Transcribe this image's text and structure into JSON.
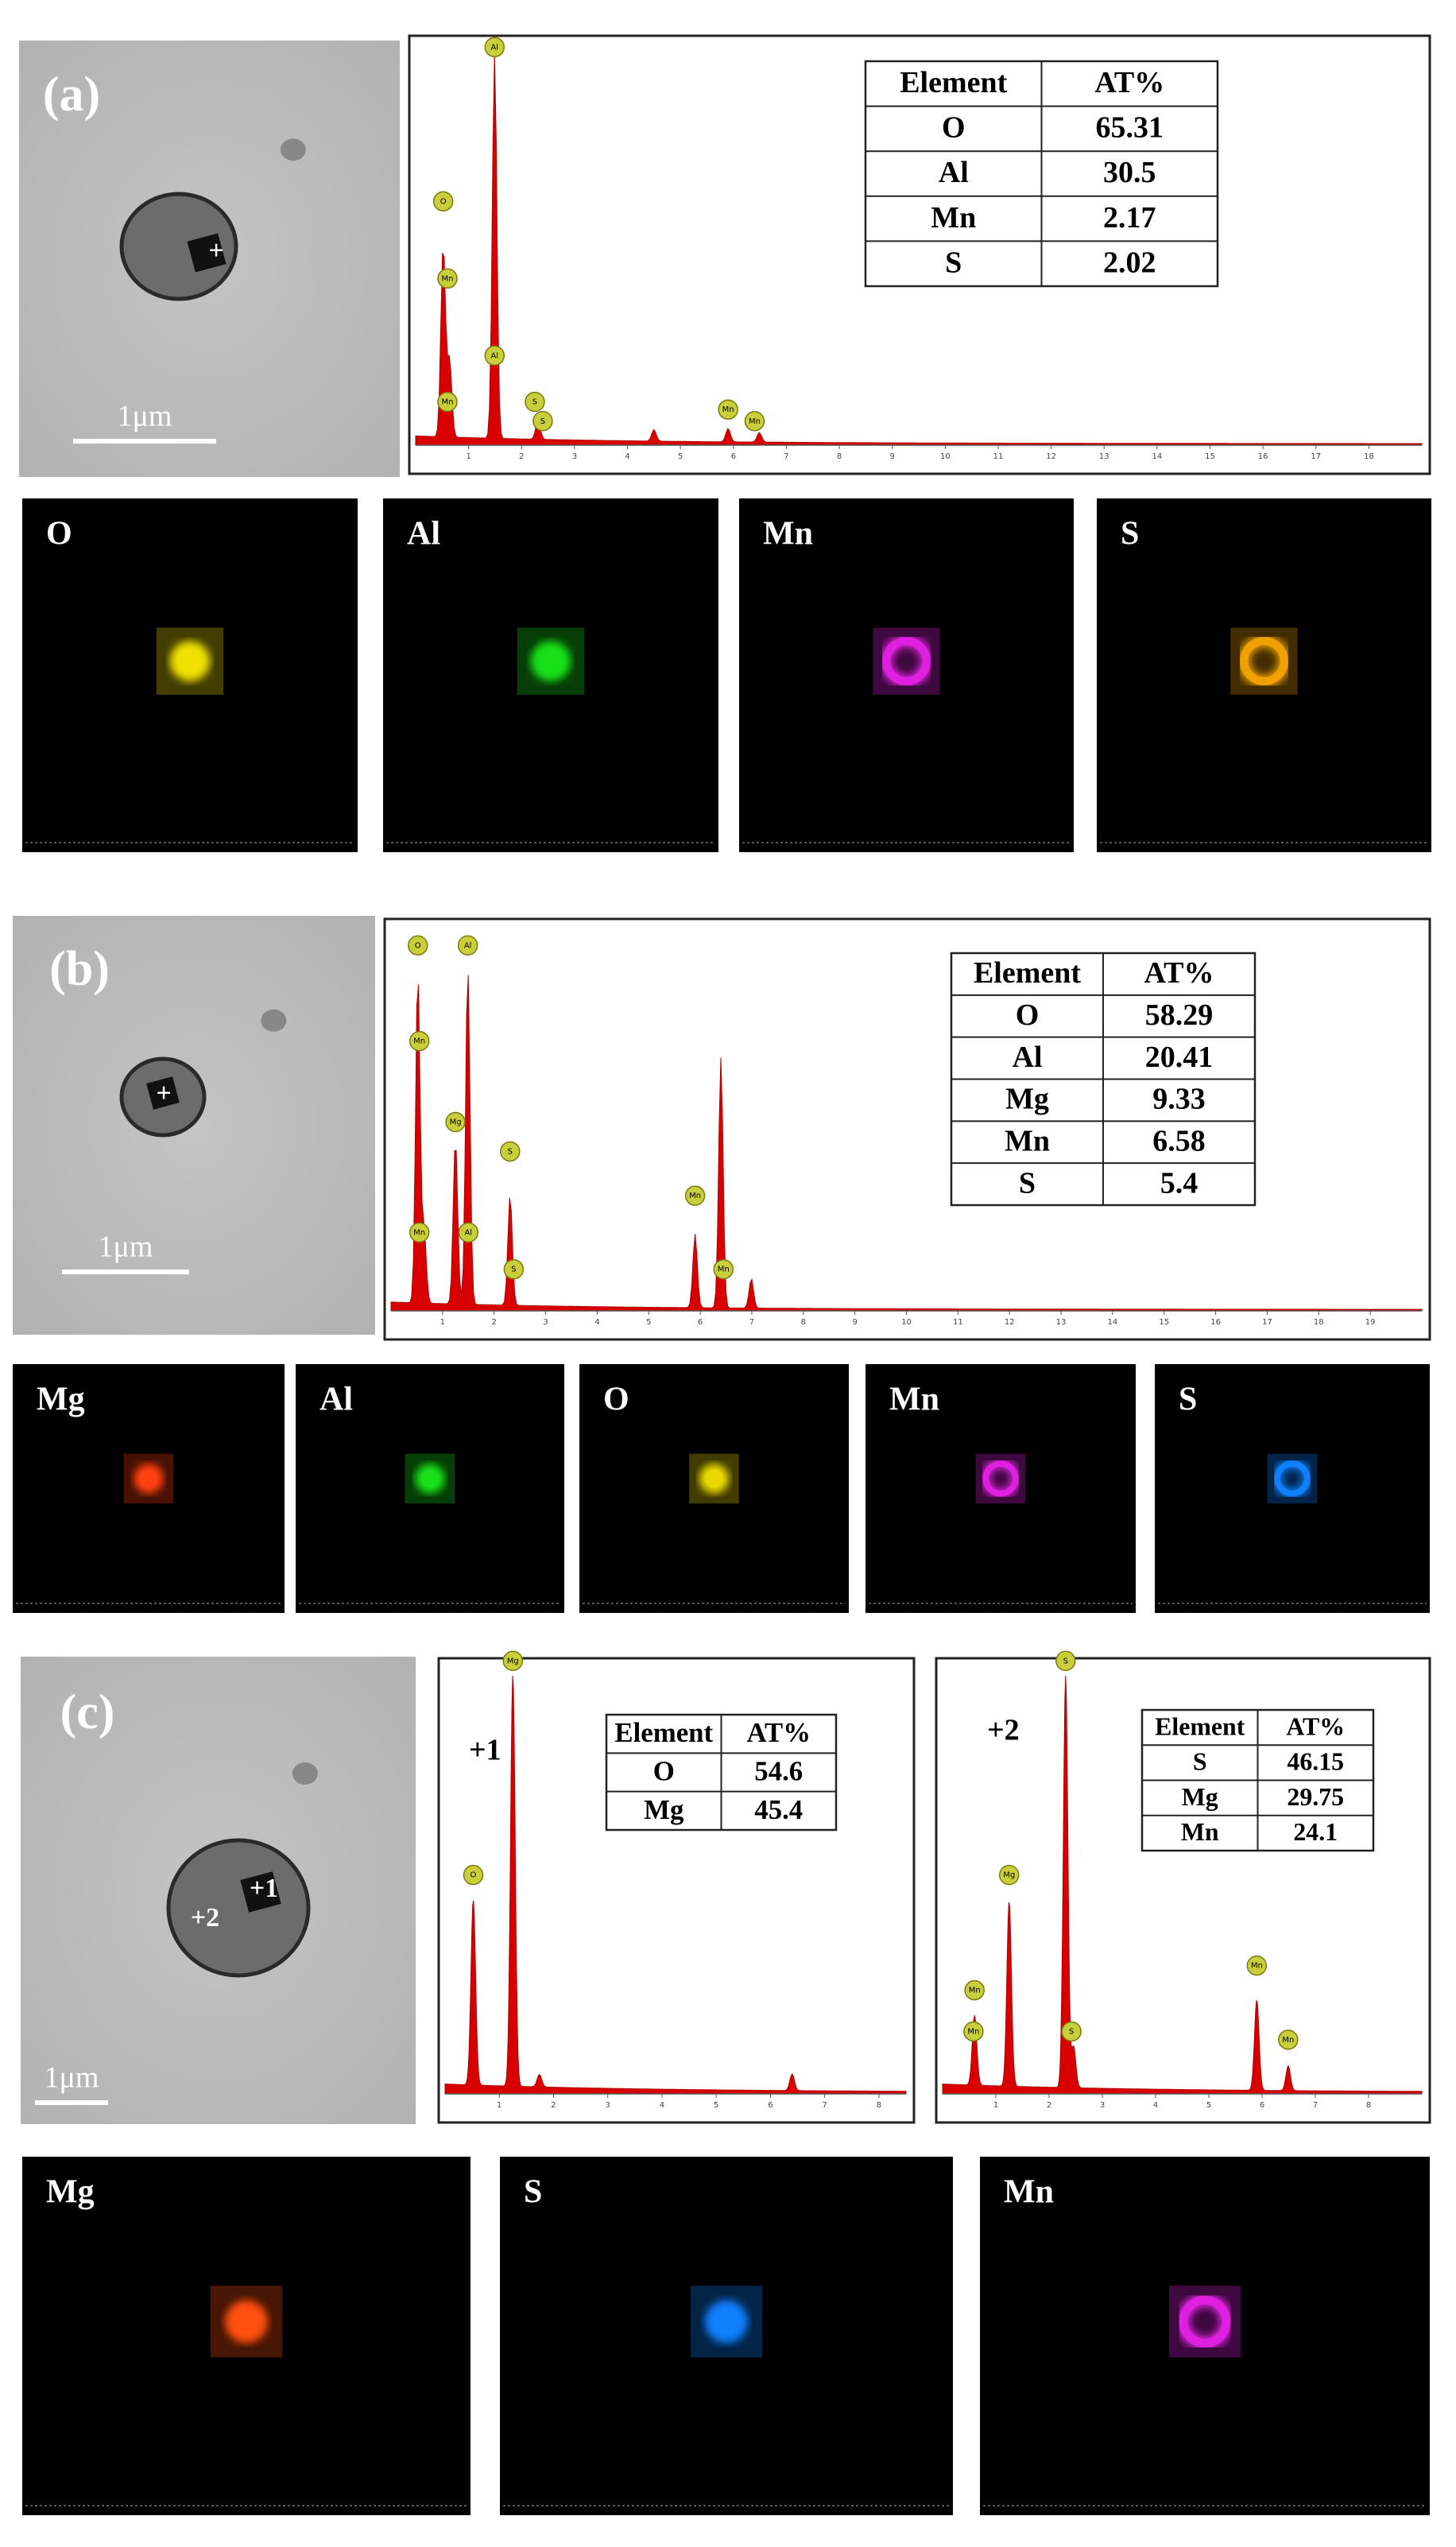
{
  "panels": [
    {
      "label": "(a)",
      "scale_bar": "1μm",
      "points": [
        "+"
      ],
      "spectra": [
        {
          "peak_labels": [
            "O",
            "Mn",
            "Mn",
            "Al",
            "Al",
            "S",
            "S",
            "Mn",
            "Mn"
          ],
          "xticks": [
            1,
            2,
            3,
            4,
            5,
            6,
            7,
            8,
            9,
            10,
            11,
            12,
            13,
            14,
            15,
            16,
            17,
            18
          ],
          "table": {
            "header": [
              "Element",
              "AT%"
            ],
            "rows": [
              [
                "O",
                65.31
              ],
              [
                "Al",
                30.5
              ],
              [
                "Mn",
                2.17
              ],
              [
                "S",
                2.02
              ]
            ]
          }
        }
      ],
      "maps": [
        {
          "element": "O",
          "color": "#f0e000"
        },
        {
          "element": "Al",
          "color": "#18e018"
        },
        {
          "element": "Mn",
          "color": "#e020e0"
        },
        {
          "element": "S",
          "color": "#f0a000"
        }
      ]
    },
    {
      "label": "(b)",
      "scale_bar": "1μm",
      "points": [
        "+"
      ],
      "spectra": [
        {
          "peak_labels": [
            "O",
            "Mn",
            "Mn",
            "Mg",
            "Al",
            "Al",
            "S",
            "S",
            "Mn",
            "Mn"
          ],
          "xticks": [
            1,
            2,
            3,
            4,
            5,
            6,
            7,
            8,
            9,
            10,
            11,
            12,
            13,
            14,
            15,
            16,
            17,
            18,
            19
          ],
          "table": {
            "header": [
              "Element",
              "AT%"
            ],
            "rows": [
              [
                "O",
                58.29
              ],
              [
                "Al",
                20.41
              ],
              [
                "Mg",
                9.33
              ],
              [
                "Mn",
                6.58
              ],
              [
                "S",
                5.4
              ]
            ]
          }
        }
      ],
      "maps": [
        {
          "element": "Mg",
          "color": "#ff4010"
        },
        {
          "element": "Al",
          "color": "#18e018"
        },
        {
          "element": "O",
          "color": "#e8d800"
        },
        {
          "element": "Mn",
          "color": "#e020e0"
        },
        {
          "element": "S",
          "color": "#1080ff"
        }
      ]
    },
    {
      "label": "(c)",
      "scale_bar": "1μm",
      "points": [
        "+1",
        "+2"
      ],
      "spectra": [
        {
          "tag": "+1",
          "peak_labels": [
            "O",
            "Mg"
          ],
          "xticks": [
            1,
            2,
            3,
            4,
            5,
            6,
            7,
            8
          ],
          "table": {
            "header": [
              "Element",
              "AT%"
            ],
            "rows": [
              [
                "O",
                54.6
              ],
              [
                "Mg",
                45.4
              ]
            ]
          }
        },
        {
          "tag": "+2",
          "peak_labels": [
            "Mn",
            "Mn",
            "Mg",
            "S",
            "S",
            "Mn",
            "Mn"
          ],
          "xticks": [
            1,
            2,
            3,
            4,
            5,
            6,
            7,
            8
          ],
          "table": {
            "header": [
              "Element",
              "AT%"
            ],
            "rows": [
              [
                "S",
                46.15
              ],
              [
                "Mg",
                29.75
              ],
              [
                "Mn",
                24.1
              ]
            ]
          }
        }
      ],
      "maps": [
        {
          "element": "Mg",
          "color": "#ff5010"
        },
        {
          "element": "S",
          "color": "#1080ff"
        },
        {
          "element": "Mn",
          "color": "#e020e0"
        }
      ]
    }
  ]
}
